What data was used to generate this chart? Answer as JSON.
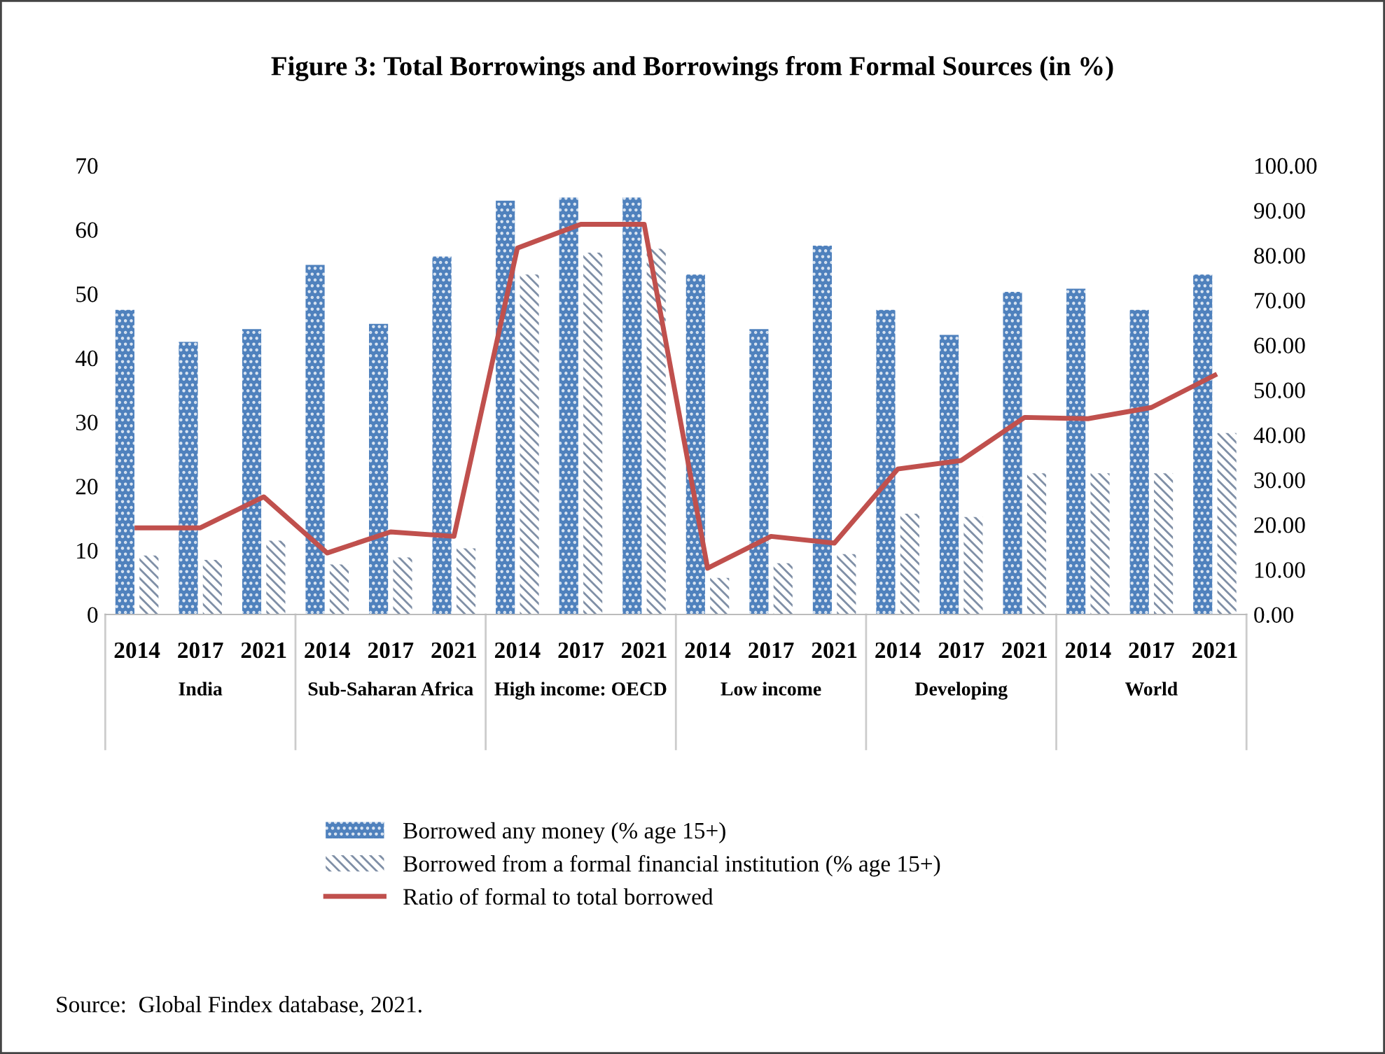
{
  "chart_data": {
    "type": "bar",
    "title": "Figure 3: Total Borrowings and Borrowings from Formal Sources (in %)",
    "categories": [
      "2014",
      "2017",
      "2021",
      "2014",
      "2017",
      "2021",
      "2014",
      "2017",
      "2021",
      "2014",
      "2017",
      "2021",
      "2014",
      "2017",
      "2021",
      "2014",
      "2017",
      "2021"
    ],
    "series": [
      {
        "name": "Borrowed any money (% age 15+)",
        "color": "#4f81bd",
        "values": [
          47.5,
          42.5,
          44.5,
          54.5,
          45.3,
          55.8,
          64.5,
          65,
          65,
          53,
          44.5,
          57.5,
          47.5,
          43.6,
          50.3,
          50.8,
          47.5,
          53
        ]
      },
      {
        "name": "Borrowed from a formal financial institution (% age 15+)",
        "color": "#7f8fa6",
        "values": [
          9.2,
          8.5,
          11.5,
          7.8,
          8.9,
          10.3,
          53,
          56.4,
          57,
          5.7,
          8,
          9.4,
          15.7,
          15.2,
          22,
          22,
          22,
          28.3
        ]
      },
      {
        "name": "Ratio of formal to total borrowed",
        "type": "line",
        "axis": "y2",
        "color": "#c0504d",
        "values": [
          19.3,
          19.3,
          26.2,
          13.7,
          18.4,
          17.4,
          81.6,
          86.9,
          86.9,
          10.3,
          17.4,
          15.9,
          32.4,
          34.3,
          43.9,
          43.6,
          46.1,
          53.3
        ]
      }
    ],
    "ylim": [
      0,
      70
    ],
    "yticks": [
      0,
      10,
      20,
      30,
      40,
      50,
      60,
      70
    ],
    "y2lim": [
      0,
      100
    ],
    "y2ticks": [
      {
        "value": 0,
        "label": "0.00"
      },
      {
        "value": 10,
        "label": "10.00"
      },
      {
        "value": 20,
        "label": "20.00"
      },
      {
        "value": 30,
        "label": "30.00"
      },
      {
        "value": 40,
        "label": "40.00"
      },
      {
        "value": 50,
        "label": "50.00"
      },
      {
        "value": 60,
        "label": "60.00"
      },
      {
        "value": 70,
        "label": "70.00"
      },
      {
        "value": 80,
        "label": "80.00"
      },
      {
        "value": 90,
        "label": "90.00"
      },
      {
        "value": 100,
        "label": "100.00"
      }
    ],
    "grid": false,
    "legend": "bottom",
    "annotations": [
      "India",
      "Sub-Saharan Africa",
      "High income: OECD",
      "Low income",
      "Developing",
      "World",
      "Source:  Global Findex database, 2021."
    ]
  }
}
